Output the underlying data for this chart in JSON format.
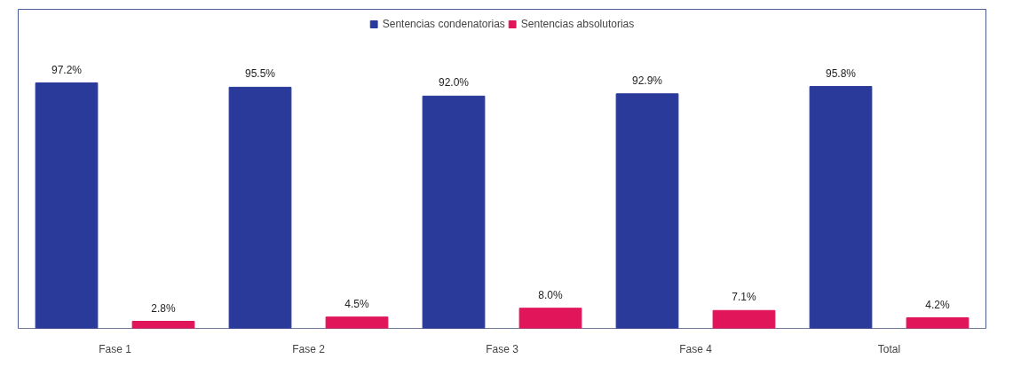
{
  "chart_data": {
    "type": "bar",
    "categories": [
      "Fase 1",
      "Fase 2",
      "Fase 3",
      "Fase 4",
      "Total"
    ],
    "series": [
      {
        "name": "Sentencias condenatorias",
        "color": "#2a3a9a",
        "values": [
          97.2,
          95.5,
          92.0,
          92.9,
          95.8
        ],
        "value_labels": [
          "97.2%",
          "95.5%",
          "92.0%",
          "92.9%",
          "95.8%"
        ]
      },
      {
        "name": "Sentencias absolutorias",
        "color": "#e0155a",
        "values": [
          2.8,
          4.5,
          8.0,
          7.1,
          4.2
        ],
        "value_labels": [
          "2.8%",
          "4.5%",
          "8.0%",
          "7.1%",
          "4.2%"
        ]
      }
    ],
    "legend": "top",
    "grid": false
  }
}
